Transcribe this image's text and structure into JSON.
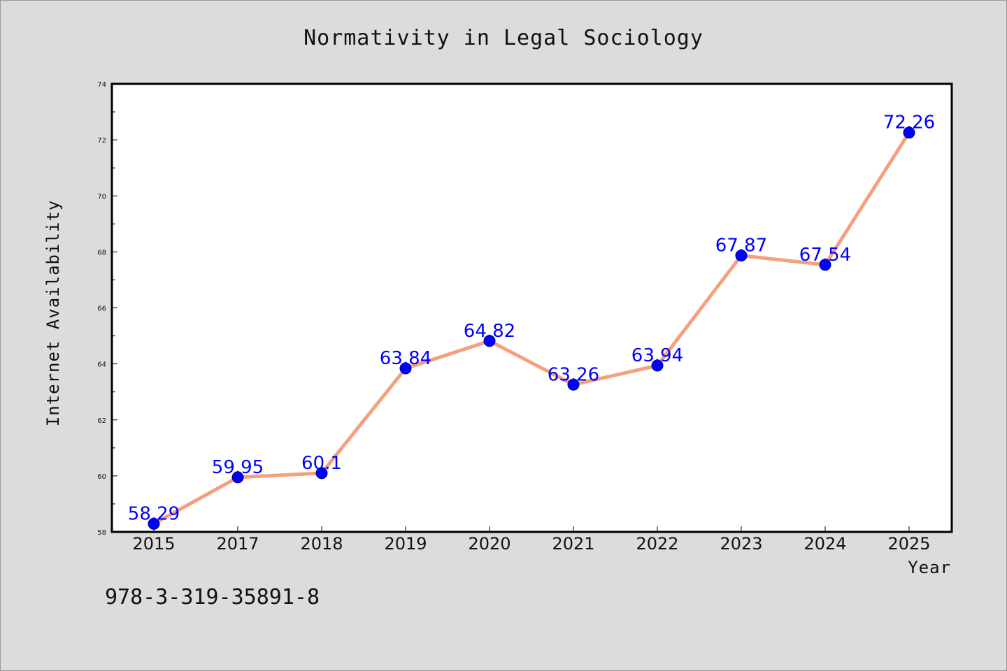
{
  "chart_data": {
    "type": "line",
    "title": "Normativity in Legal Sociology",
    "xlabel": "Year",
    "ylabel": "Internet Availability",
    "categories": [
      "2015",
      "2017",
      "2018",
      "2019",
      "2020",
      "2021",
      "2022",
      "2023",
      "2024",
      "2025"
    ],
    "series": [
      {
        "values": [
          58.29,
          59.95,
          60.1,
          63.84,
          64.82,
          63.26,
          63.94,
          67.87,
          67.54,
          72.26
        ],
        "line_color": "#f4a07e",
        "marker_color": "#0000ff"
      }
    ],
    "data_labels": [
      "58.29",
      "59.95",
      "60.1",
      "63.84",
      "64.82",
      "63.26",
      "63.94",
      "67.87",
      "67.54",
      "72.26"
    ],
    "ylim": [
      58,
      74
    ],
    "yticks": [
      "58",
      "60",
      "62",
      "64",
      "66",
      "68",
      "70",
      "72",
      "74"
    ],
    "grid": false,
    "label_color": "#0000ff"
  },
  "footnote": "978-3-319-35891-8"
}
